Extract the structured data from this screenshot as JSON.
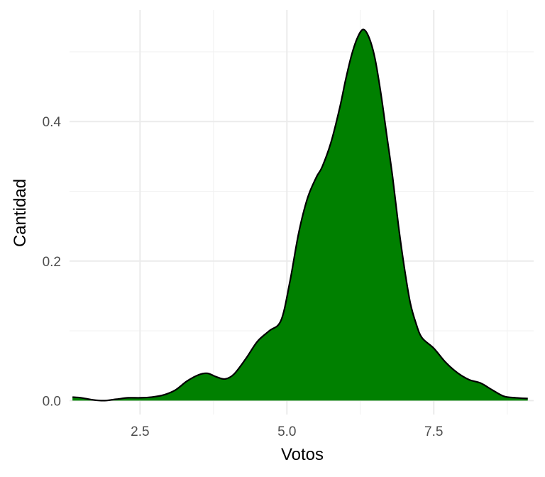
{
  "chart_data": {
    "type": "area",
    "xlabel": "Votos",
    "ylabel": "Cantidad",
    "xlim": [
      1.3,
      9.2
    ],
    "ylim": [
      -0.02,
      0.56
    ],
    "grid": true,
    "x_ticks": [
      2.5,
      5.0,
      7.5
    ],
    "x_tick_labels": [
      "2.5",
      "5.0",
      "7.5"
    ],
    "y_ticks": [
      0.0,
      0.2,
      0.4
    ],
    "y_tick_labels": [
      "0.0",
      "0.2",
      "0.4"
    ],
    "fill_color": "#008000",
    "line_color": "#000000",
    "x": [
      1.35,
      1.5,
      1.7,
      1.9,
      2.1,
      2.3,
      2.5,
      2.7,
      2.9,
      3.1,
      3.3,
      3.5,
      3.65,
      3.8,
      3.95,
      4.1,
      4.3,
      4.5,
      4.7,
      4.9,
      5.05,
      5.2,
      5.35,
      5.5,
      5.6,
      5.75,
      5.9,
      6.0,
      6.1,
      6.2,
      6.3,
      6.4,
      6.5,
      6.6,
      6.7,
      6.8,
      6.9,
      7.0,
      7.1,
      7.2,
      7.3,
      7.5,
      7.7,
      7.9,
      8.1,
      8.3,
      8.5,
      8.7,
      8.9,
      9.1
    ],
    "y": [
      0.005,
      0.004,
      0.001,
      0.0,
      0.002,
      0.004,
      0.004,
      0.005,
      0.008,
      0.015,
      0.028,
      0.037,
      0.039,
      0.034,
      0.031,
      0.038,
      0.06,
      0.085,
      0.1,
      0.115,
      0.17,
      0.24,
      0.29,
      0.32,
      0.335,
      0.37,
      0.42,
      0.46,
      0.495,
      0.52,
      0.532,
      0.52,
      0.49,
      0.44,
      0.38,
      0.32,
      0.25,
      0.19,
      0.14,
      0.11,
      0.09,
      0.075,
      0.055,
      0.04,
      0.03,
      0.025,
      0.015,
      0.006,
      0.004,
      0.003
    ]
  }
}
